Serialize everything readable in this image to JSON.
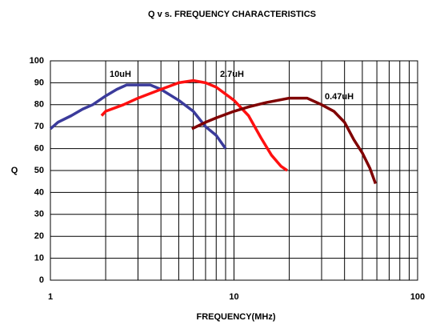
{
  "chart_data": {
    "type": "line",
    "title": "Q v s. FREQUENCY CHARACTERISTICS",
    "xlabel": "FREQUENCY(MHz)",
    "ylabel": "Q",
    "xscale": "log",
    "xlim": [
      1,
      100
    ],
    "xticks": [
      1,
      10,
      100
    ],
    "ylim": [
      0,
      100
    ],
    "yticks": [
      0,
      10,
      20,
      30,
      40,
      50,
      60,
      70,
      80,
      90,
      100
    ],
    "grid": true,
    "series": [
      {
        "name": "10uH",
        "color": "#3b3b9b",
        "x": [
          1,
          1.1,
          1.3,
          1.5,
          1.7,
          2,
          2.3,
          2.6,
          3,
          3.5,
          4,
          5,
          6,
          7,
          8,
          9
        ],
        "values": [
          69,
          72,
          75,
          78,
          80,
          84,
          87,
          89,
          89,
          89,
          87,
          82,
          77,
          70,
          66,
          60
        ]
      },
      {
        "name": "2.7uH",
        "color": "#ff1010",
        "x": [
          1.9,
          2,
          2.5,
          3,
          4,
          5,
          6,
          7,
          8,
          10,
          12,
          14,
          16,
          18,
          19.5
        ],
        "values": [
          75,
          77,
          80,
          83,
          87,
          90,
          91,
          90,
          88,
          82,
          75,
          65,
          57,
          52,
          50
        ]
      },
      {
        "name": "0.47uH",
        "color": "#800000",
        "x": [
          5.9,
          7,
          8,
          10,
          12,
          15,
          20,
          25,
          30,
          35,
          40,
          45,
          50,
          55,
          59
        ],
        "values": [
          69,
          72,
          74,
          77,
          79,
          81,
          83,
          83,
          80,
          77,
          72,
          64,
          58,
          51,
          44
        ]
      }
    ]
  }
}
